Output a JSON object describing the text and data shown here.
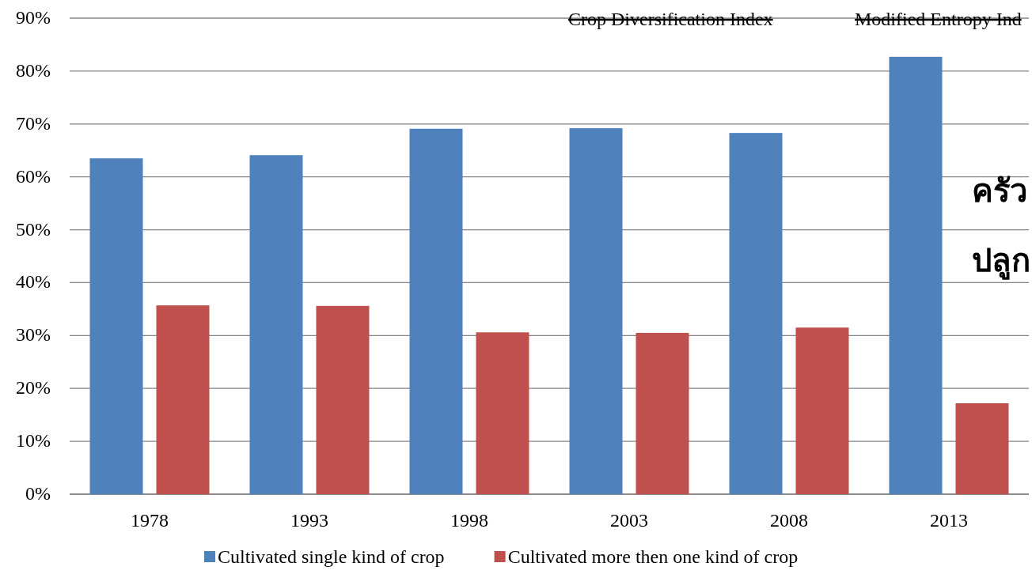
{
  "chart_data": {
    "type": "bar",
    "categories": [
      "1978",
      "1993",
      "1998",
      "2003",
      "2008",
      "2013"
    ],
    "series": [
      {
        "name": "Cultivated single kind of crop",
        "color": "#4f81bd",
        "values": [
          63.5,
          64.1,
          69.1,
          69.2,
          68.3,
          82.7
        ]
      },
      {
        "name": "Cultivated more then one kind of crop",
        "color": "#c0504d",
        "values": [
          35.7,
          35.6,
          30.6,
          30.5,
          31.5,
          17.2
        ]
      }
    ],
    "ylim": [
      0,
      90
    ],
    "yticks": [
      {
        "value": 0,
        "label": "0%"
      },
      {
        "value": 10,
        "label": "10%"
      },
      {
        "value": 20,
        "label": "20%"
      },
      {
        "value": 30,
        "label": "30%"
      },
      {
        "value": 40,
        "label": "40%"
      },
      {
        "value": 50,
        "label": "50%"
      },
      {
        "value": 60,
        "label": "60%"
      },
      {
        "value": 70,
        "label": "70%"
      },
      {
        "value": 80,
        "label": "80%"
      },
      {
        "value": 90,
        "label": "90%"
      }
    ],
    "grid": "y",
    "legend": "bottom",
    "annotations": [
      "Crop Diversification Index",
      "Modified Entropy Ind",
      "ครัว",
      "ปลูก"
    ]
  }
}
